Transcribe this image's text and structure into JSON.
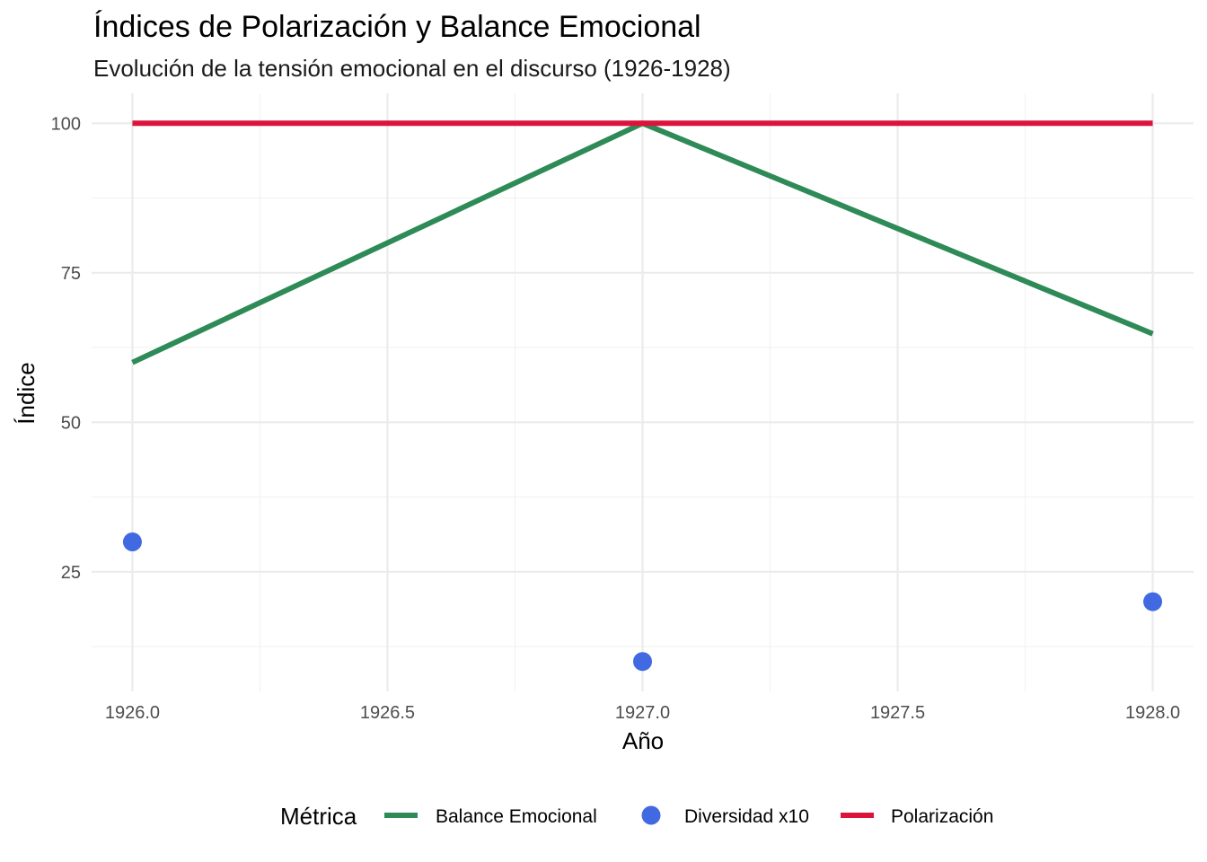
{
  "chart_data": {
    "type": "line",
    "title": "Índices de Polarización y Balance Emocional",
    "subtitle": "Evolución de la tensión emocional en el discurso (1926-1928)",
    "xlabel": "Año",
    "ylabel": "Índice",
    "xlim": [
      1925.92,
      1928.08
    ],
    "ylim": [
      5,
      105
    ],
    "x_ticks": [
      1926.0,
      1926.5,
      1927.0,
      1927.5,
      1928.0
    ],
    "x_tick_labels": [
      "1926.0",
      "1926.5",
      "1927.0",
      "1927.5",
      "1928.0"
    ],
    "x_minor_ticks": [
      1926.25,
      1926.75,
      1927.25,
      1927.75
    ],
    "y_ticks": [
      25,
      50,
      75,
      100
    ],
    "y_tick_labels": [
      "25",
      "50",
      "75",
      "100"
    ],
    "y_minor_ticks": [
      12.5,
      37.5,
      62.5,
      87.5
    ],
    "grid": true,
    "legend": {
      "title": "Métrica",
      "position": "bottom"
    },
    "series": [
      {
        "name": "Balance Emocional",
        "geom": "line",
        "color": "#2e8b57",
        "x": [
          1926,
          1927,
          1928
        ],
        "values": [
          60,
          100,
          64.8
        ]
      },
      {
        "name": "Diversidad x10",
        "geom": "point",
        "color": "#4169e1",
        "x": [
          1926,
          1927,
          1928
        ],
        "values": [
          30,
          10,
          20
        ]
      },
      {
        "name": "Polarización",
        "geom": "line",
        "color": "#dc143c",
        "x": [
          1926,
          1927,
          1928
        ],
        "values": [
          100,
          100,
          100
        ]
      }
    ]
  }
}
